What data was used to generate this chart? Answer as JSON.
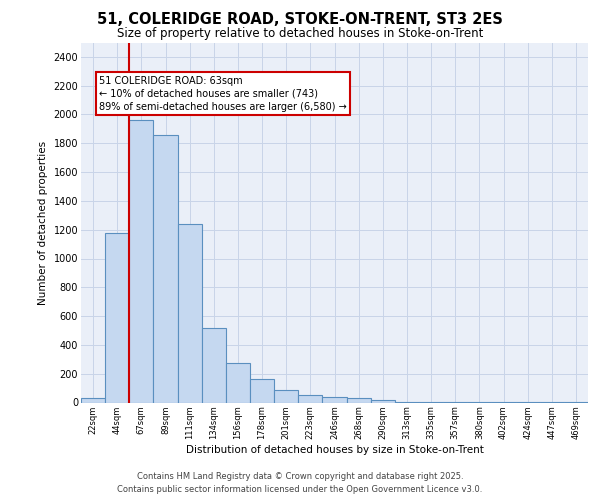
{
  "title_line1": "51, COLERIDGE ROAD, STOKE-ON-TRENT, ST3 2ES",
  "title_line2": "Size of property relative to detached houses in Stoke-on-Trent",
  "xlabel": "Distribution of detached houses by size in Stoke-on-Trent",
  "ylabel": "Number of detached properties",
  "categories": [
    "22sqm",
    "44sqm",
    "67sqm",
    "89sqm",
    "111sqm",
    "134sqm",
    "156sqm",
    "178sqm",
    "201sqm",
    "223sqm",
    "246sqm",
    "268sqm",
    "290sqm",
    "313sqm",
    "335sqm",
    "357sqm",
    "380sqm",
    "402sqm",
    "424sqm",
    "447sqm",
    "469sqm"
  ],
  "values": [
    30,
    1175,
    1960,
    1855,
    1240,
    515,
    275,
    160,
    90,
    50,
    40,
    30,
    20,
    5,
    2,
    2,
    1,
    2,
    1,
    1,
    1
  ],
  "bar_color": "#c5d8f0",
  "bar_edge_color": "#5a8fbf",
  "bar_edge_width": 0.8,
  "vline_color": "#cc0000",
  "vline_linewidth": 1.5,
  "annotation_text": "51 COLERIDGE ROAD: 63sqm\n← 10% of detached houses are smaller (743)\n89% of semi-detached houses are larger (6,580) →",
  "annotation_fc": "white",
  "annotation_ec": "#cc0000",
  "grid_color": "#c8d4e8",
  "bg_color": "#eaeff8",
  "ylim": [
    0,
    2500
  ],
  "yticks": [
    0,
    200,
    400,
    600,
    800,
    1000,
    1200,
    1400,
    1600,
    1800,
    2000,
    2200,
    2400
  ],
  "footer_line1": "Contains HM Land Registry data © Crown copyright and database right 2025.",
  "footer_line2": "Contains public sector information licensed under the Open Government Licence v3.0."
}
